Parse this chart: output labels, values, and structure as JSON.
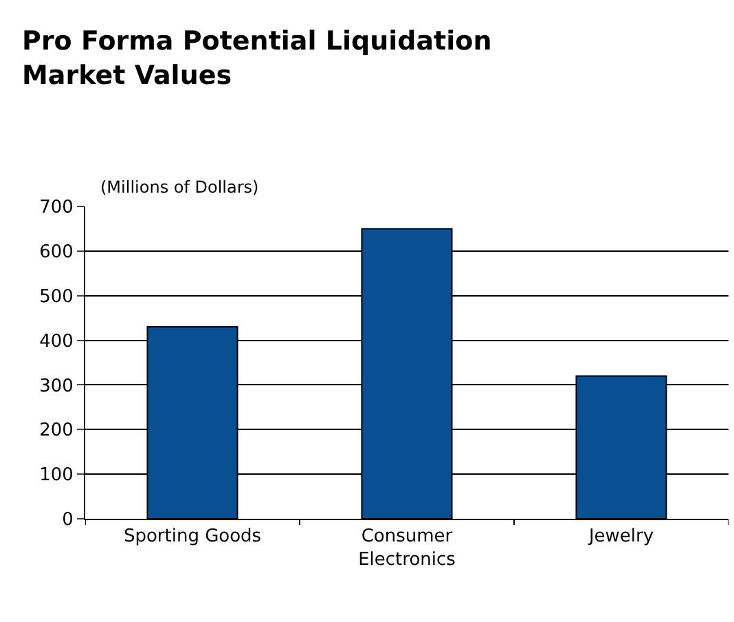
{
  "chart_data": {
    "type": "bar",
    "title": "Pro Forma Potential Liquidation Market Values",
    "ylabel": "(Millions of Dollars)",
    "categories": [
      "Sporting Goods",
      "Consumer Electronics",
      "Jewelry"
    ],
    "values": [
      430,
      650,
      320
    ],
    "color": "#0a4f92",
    "ylim": [
      0,
      700
    ],
    "yticks": [
      0,
      100,
      200,
      300,
      400,
      500,
      600,
      700
    ],
    "grid": "y",
    "legend": false
  }
}
